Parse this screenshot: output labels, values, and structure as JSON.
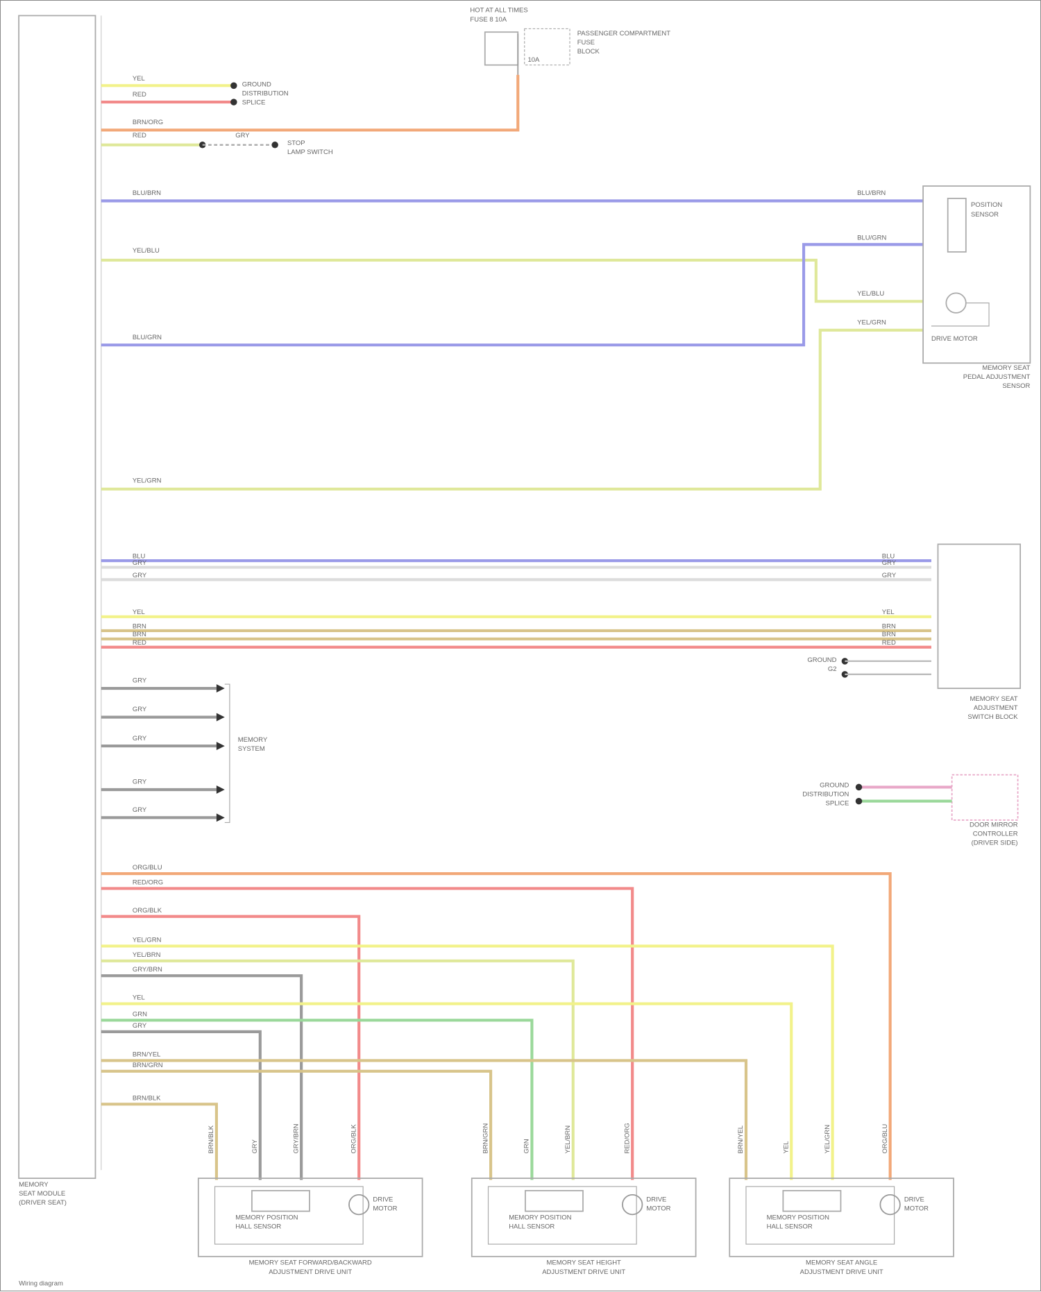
{
  "diagram": {
    "main_module_label": [
      "MEMORY",
      "SEAT MODULE",
      "(DRIVER SEAT)"
    ],
    "footer": "Wiring diagram",
    "fuse_block": {
      "title": [
        "HOT AT ALL TIMES",
        "FUSE 8 10A"
      ],
      "side_text": [
        "PASSENGER COMPARTMENT",
        "FUSE",
        "BLOCK"
      ],
      "fuse": "10A"
    },
    "ground_splice": [
      "GROUND",
      "DISTRIBUTION",
      "SPLICE"
    ],
    "stop_lamp": [
      "STOP",
      "LAMP SWITCH"
    ],
    "pedal_sensor": {
      "name": [
        "MEMORY SEAT",
        "PEDAL ADJUSTMENT",
        "SENSOR"
      ],
      "parts": [
        "POSITION",
        "SENSOR",
        "DRIVE MOTOR"
      ]
    },
    "switch_block": [
      "MEMORY SEAT",
      "ADJUSTMENT",
      "SWITCH BLOCK"
    ],
    "memory_system": [
      "MEMORY",
      "SYSTEM"
    ],
    "mirror_ctrl": [
      "DOOR MIRROR",
      "CONTROLLER",
      "(DRIVER SIDE)"
    ],
    "ground_right": [
      "GROUND",
      "G2"
    ],
    "ground_right2": [
      "GROUND",
      "DISTRIBUTION",
      "SPLICE"
    ],
    "motors": [
      {
        "name": [
          "MEMORY SEAT FORWARD/BACKWARD",
          "ADJUSTMENT DRIVE UNIT"
        ],
        "sensor": [
          "MEMORY POSITION",
          "HALL SENSOR"
        ],
        "motor": [
          "DRIVE",
          "MOTOR"
        ]
      },
      {
        "name": [
          "MEMORY SEAT HEIGHT",
          "ADJUSTMENT DRIVE UNIT"
        ],
        "sensor": [
          "MEMORY POSITION",
          "HALL SENSOR"
        ],
        "motor": [
          "DRIVE",
          "MOTOR"
        ]
      },
      {
        "name": [
          "MEMORY SEAT ANGLE",
          "ADJUSTMENT DRIVE UNIT"
        ],
        "sensor": [
          "MEMORY POSITION",
          "HALL SENSOR"
        ],
        "motor": [
          "DRIVE",
          "MOTOR"
        ]
      }
    ],
    "wire_labels": {
      "w_yel": "YEL",
      "w_red": "RED",
      "w_brnorg": "BRN/ORG",
      "w_red2": "RED",
      "w_gry": "GRY",
      "w_blubrn": "BLU/BRN",
      "w_yelblu": "YEL/BLU",
      "w_blugrn": "BLU/GRN",
      "w_yelgrn": "YEL/GRN",
      "s_blu": "BLU",
      "s_gry": "GRY",
      "s_gry2": "GRY",
      "s_yel": "YEL",
      "s_brn": "BRN",
      "s_red": "RED",
      "m1": "GRY",
      "m2": "GRY",
      "m3": "GRY",
      "m4": "GRY",
      "m5": "GRY",
      "b1": "ORG/BLU",
      "b2": "RED/ORG",
      "b3": "ORG/BLK",
      "b4": "YEL/GRN",
      "b5": "YEL/BRN",
      "b6": "GRY/BRN",
      "b7": "YEL",
      "b8": "GRN",
      "b9": "GRY",
      "b10": "BRN/YEL",
      "b11": "BRN/GRN",
      "b12": "BRN/BLK"
    },
    "colors": {
      "yellow": "#f2f28a",
      "red": "#f28a8a",
      "orange": "#f2a878",
      "blue": "#9a9ae8",
      "ygreen": "#dfe89a",
      "green": "#9ad89a",
      "grey": "#9a9a9a",
      "tan": "#d8c48a",
      "pink": "#e8a8c8",
      "white": "#dcdcdc"
    }
  }
}
